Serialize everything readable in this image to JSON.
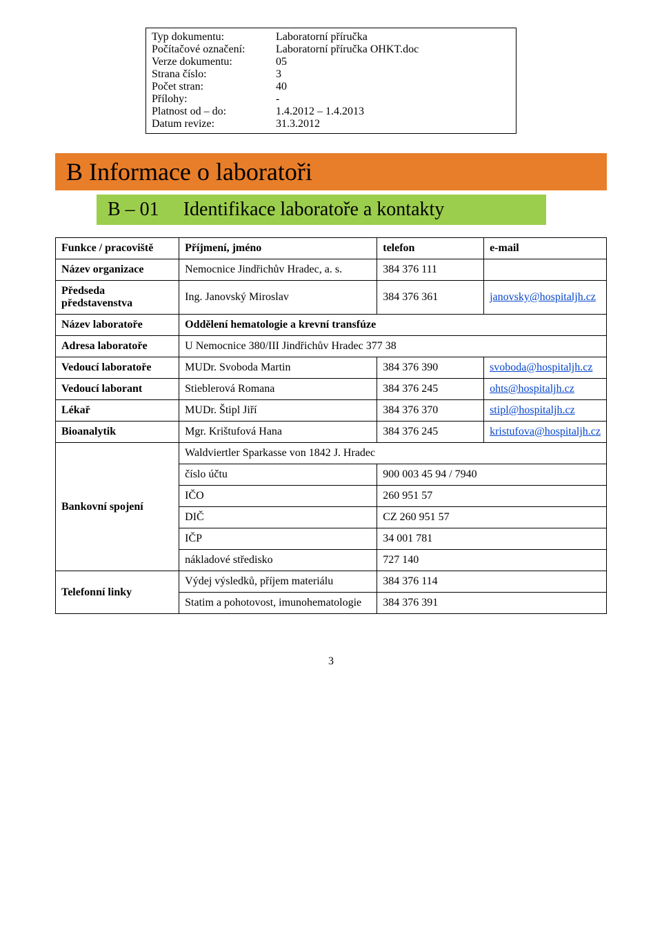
{
  "meta": {
    "rows": [
      {
        "label": "Typ dokumentu:",
        "value": "Laboratorní příručka"
      },
      {
        "label": "Počítačové označení:",
        "value": "Laboratorní příručka OHKT.doc"
      },
      {
        "label": "Verze dokumentu:",
        "value": "05"
      },
      {
        "label": "Strana číslo:",
        "value": "3"
      },
      {
        "label": "Počet stran:",
        "value": "40"
      },
      {
        "label": "Přílohy:",
        "value": "-"
      },
      {
        "label": "Platnost od – do:",
        "value": "1.4.2012 – 1.4.2013"
      },
      {
        "label": "Datum revize:",
        "value": "31.3.2012"
      }
    ]
  },
  "heading1": "B Informace o laboratoři",
  "heading2_num": "B – 01",
  "heading2_text": "Identifikace laboratoře a kontakty",
  "header": {
    "c1": "Funkce / pracoviště",
    "c2": "Příjmení, jméno",
    "c3": "telefon",
    "c4": "e-mail"
  },
  "rows": {
    "org": {
      "label": "Název organizace",
      "name": "Nemocnice Jindřichův Hradec, a. s.",
      "phone": "384 376 111",
      "email": ""
    },
    "chair": {
      "label": "Předseda představenstva",
      "name": "Ing. Janovský Miroslav",
      "phone": "384 376 361",
      "email": "janovsky@hospitaljh.cz"
    },
    "labname": {
      "label": "Název laboratoře",
      "value": "Oddělení hematologie a krevní transfúze"
    },
    "addr": {
      "label": "Adresa laboratoře",
      "value": "U Nemocnice 380/III Jindřichův Hradec 377 38"
    },
    "head": {
      "label": "Vedoucí laboratoře",
      "name": "MUDr. Svoboda Martin",
      "phone": "384 376 390",
      "email": "svoboda@hospitaljh.cz"
    },
    "leadtech": {
      "label": "Vedoucí laborant",
      "name": "Stieblerová Romana",
      "phone": "384 376 245",
      "email": "ohts@hospitaljh.cz"
    },
    "doctor": {
      "label": "Lékař",
      "name": "MUDr. Štipl Jiří",
      "phone": "384 376 370",
      "email": "stipl@hospitaljh.cz"
    },
    "bio": {
      "label": "Bioanalytik",
      "name": "Mgr. Krištufová Hana",
      "phone": "384 376 245",
      "email": "kristufova@hospitaljh.cz"
    }
  },
  "bank": {
    "label": "Bankovní spojení",
    "header": "Waldviertler Sparkasse von 1842 J. Hradec",
    "rows": [
      {
        "k": "číslo účtu",
        "v": "900 003 45 94 / 7940"
      },
      {
        "k": "IČO",
        "v": "260 951 57"
      },
      {
        "k": "DIČ",
        "v": "CZ 260 951 57"
      },
      {
        "k": "IČP",
        "v": "34 001 781"
      },
      {
        "k": "nákladové středisko",
        "v": "727 140"
      }
    ]
  },
  "phones": {
    "label": "Telefonní linky",
    "rows": [
      {
        "k": "Výdej výsledků, příjem materiálu",
        "v": "384 376 114"
      },
      {
        "k": "Statim a pohotovost, imunohematologie",
        "v": "384 376 391"
      }
    ]
  },
  "pagenum": "3"
}
